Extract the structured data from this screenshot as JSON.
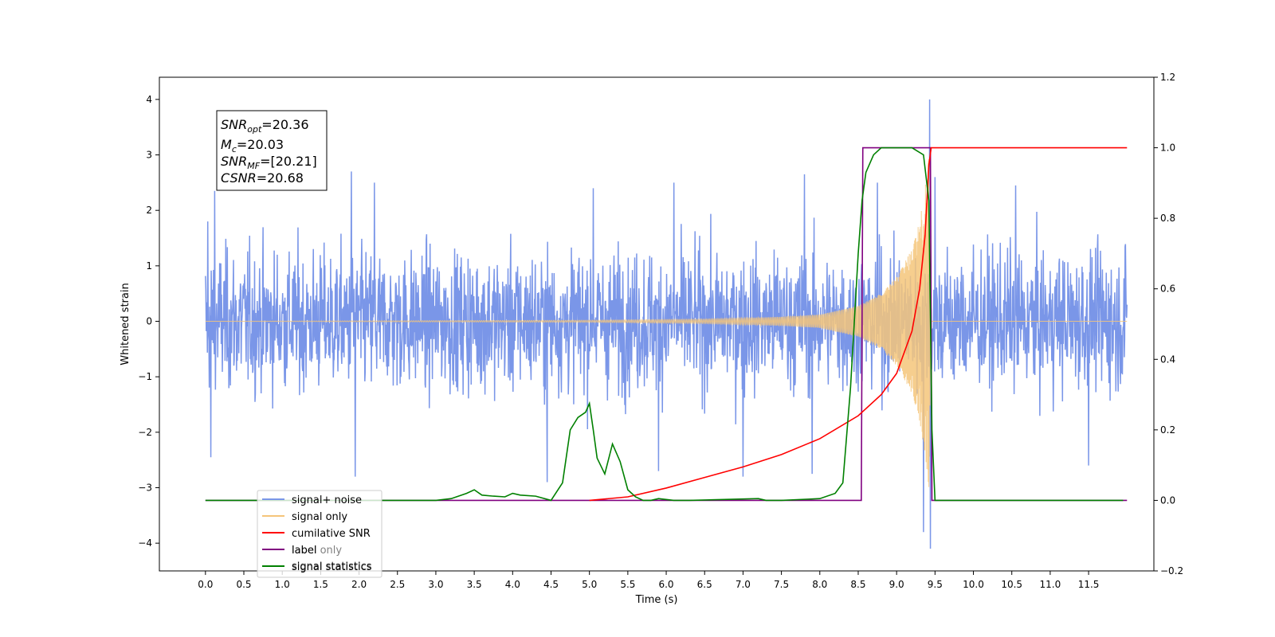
{
  "chart_data": {
    "type": "line",
    "xlabel": "Time (s)",
    "ylabel": "Whitened strain",
    "xlim": [
      -0.6,
      12.35
    ],
    "ylim_left": [
      -4.5,
      4.4
    ],
    "ylim_right": [
      -0.2,
      1.2
    ],
    "xticks": [
      "0.0",
      "0.5",
      "1.0",
      "1.5",
      "2.0",
      "2.5",
      "3.0",
      "3.5",
      "4.0",
      "4.5",
      "5.0",
      "5.5",
      "6.0",
      "6.5",
      "7.0",
      "7.5",
      "8.0",
      "8.5",
      "9.0",
      "9.5",
      "10.0",
      "10.5",
      "11.0",
      "11.5"
    ],
    "yticks_left": [
      "4",
      "3",
      "2",
      "1",
      "0",
      "−1",
      "−2",
      "−3",
      "−4"
    ],
    "yticks_right": [
      "1.2",
      "1.0",
      "0.8",
      "0.6",
      "0.4",
      "0.2",
      "0.0",
      "−0.2"
    ],
    "annotation": {
      "snr_opt": {
        "main": "SNR",
        "sub": "opt",
        "value": "=20.36"
      },
      "mc": {
        "main": "M",
        "sub": "c",
        "value": "=20.03"
      },
      "snr_mf": {
        "main": "SNR",
        "sub": "MF",
        "value": "=[20.21]"
      },
      "csnr": {
        "main": "CSNR",
        "value": "=20.68"
      }
    },
    "legend": {
      "position": "lower-left",
      "entries": [
        {
          "label": "signal+ noise",
          "color": "#7a96e8"
        },
        {
          "label": "signal only",
          "color": "#f5c57a"
        },
        {
          "label": "cumilative SNR",
          "color": "#ff0000"
        },
        {
          "label": "label",
          "color": "#800080"
        },
        {
          "label": "signal statistics",
          "color": "#008000"
        }
      ],
      "hidden_text": [
        "label only",
        "signal statistics"
      ]
    },
    "series": [
      {
        "name": "signal+ noise",
        "axis": "left",
        "color": "#7a96e8",
        "envelope": {
          "t_start": 0.0,
          "t_end": 12.0,
          "typical_amplitude": 1.4,
          "max_peaks": 2.7
        },
        "outliers": [
          [
            0.03,
            1.8
          ],
          [
            0.07,
            -2.45
          ],
          [
            0.12,
            2.35
          ],
          [
            1.9,
            2.7
          ],
          [
            1.95,
            -2.8
          ],
          [
            2.2,
            2.5
          ],
          [
            4.45,
            -2.9
          ],
          [
            5.05,
            2.4
          ],
          [
            5.9,
            -2.7
          ],
          [
            6.1,
            2.5
          ],
          [
            7.0,
            -2.8
          ],
          [
            7.8,
            2.65
          ],
          [
            7.9,
            -2.75
          ],
          [
            8.75,
            2.5
          ],
          [
            9.35,
            -3.8
          ],
          [
            9.43,
            4.0
          ],
          [
            9.44,
            -4.1
          ],
          [
            9.5,
            2.6
          ],
          [
            10.55,
            2.45
          ],
          [
            11.5,
            -2.6
          ]
        ]
      },
      {
        "name": "signal only",
        "axis": "left",
        "color": "#f5c57a",
        "chirp": {
          "t_merger": 9.45,
          "amplitude_at": [
            [
              0.0,
              0.0
            ],
            [
              5.0,
              0.02
            ],
            [
              6.5,
              0.04
            ],
            [
              7.5,
              0.08
            ],
            [
              8.0,
              0.12
            ],
            [
              8.5,
              0.28
            ],
            [
              8.8,
              0.5
            ],
            [
              9.0,
              0.8
            ],
            [
              9.2,
              1.3
            ],
            [
              9.3,
              1.8
            ],
            [
              9.38,
              2.5
            ],
            [
              9.42,
              3.0
            ],
            [
              9.45,
              0.0
            ],
            [
              12.0,
              0.0
            ]
          ]
        }
      },
      {
        "name": "cumilative SNR",
        "axis": "right",
        "color": "#ff0000",
        "x": [
          5.0,
          5.5,
          6.0,
          6.5,
          7.0,
          7.5,
          8.0,
          8.5,
          8.8,
          9.0,
          9.2,
          9.3,
          9.37,
          9.42,
          9.45,
          12.0
        ],
        "y": [
          0.0,
          0.01,
          0.035,
          0.065,
          0.095,
          0.13,
          0.175,
          0.24,
          0.3,
          0.36,
          0.48,
          0.6,
          0.75,
          0.95,
          1.0,
          1.0
        ]
      },
      {
        "name": "label",
        "axis": "right",
        "color": "#800080",
        "x": [
          0.0,
          8.54,
          8.56,
          9.44,
          9.46,
          12.0
        ],
        "y": [
          0.0,
          0.0,
          1.0,
          1.0,
          0.0,
          0.0
        ]
      },
      {
        "name": "signal statistics",
        "axis": "right",
        "color": "#008000",
        "x": [
          0.0,
          3.0,
          3.2,
          3.4,
          3.5,
          3.6,
          3.75,
          3.9,
          4.0,
          4.1,
          4.3,
          4.5,
          4.65,
          4.75,
          4.85,
          4.95,
          5.0,
          5.05,
          5.1,
          5.2,
          5.3,
          5.4,
          5.5,
          5.6,
          5.7,
          5.8,
          5.9,
          6.1,
          6.3,
          7.2,
          7.3,
          7.5,
          8.0,
          8.2,
          8.3,
          8.4,
          8.5,
          8.55,
          8.6,
          8.7,
          8.8,
          9.0,
          9.2,
          9.35,
          9.42,
          9.46,
          9.5,
          11.95
        ],
        "y": [
          0.0,
          0.0,
          0.005,
          0.02,
          0.03,
          0.015,
          0.012,
          0.01,
          0.02,
          0.015,
          0.012,
          0.0,
          0.05,
          0.2,
          0.235,
          0.25,
          0.275,
          0.2,
          0.12,
          0.075,
          0.16,
          0.11,
          0.03,
          0.01,
          0.0,
          0.0,
          0.005,
          0.0,
          0.0,
          0.005,
          0.0,
          0.0,
          0.005,
          0.02,
          0.05,
          0.32,
          0.7,
          0.85,
          0.93,
          0.98,
          1.0,
          1.0,
          1.0,
          0.98,
          0.85,
          0.2,
          0.0,
          0.0
        ]
      }
    ]
  }
}
